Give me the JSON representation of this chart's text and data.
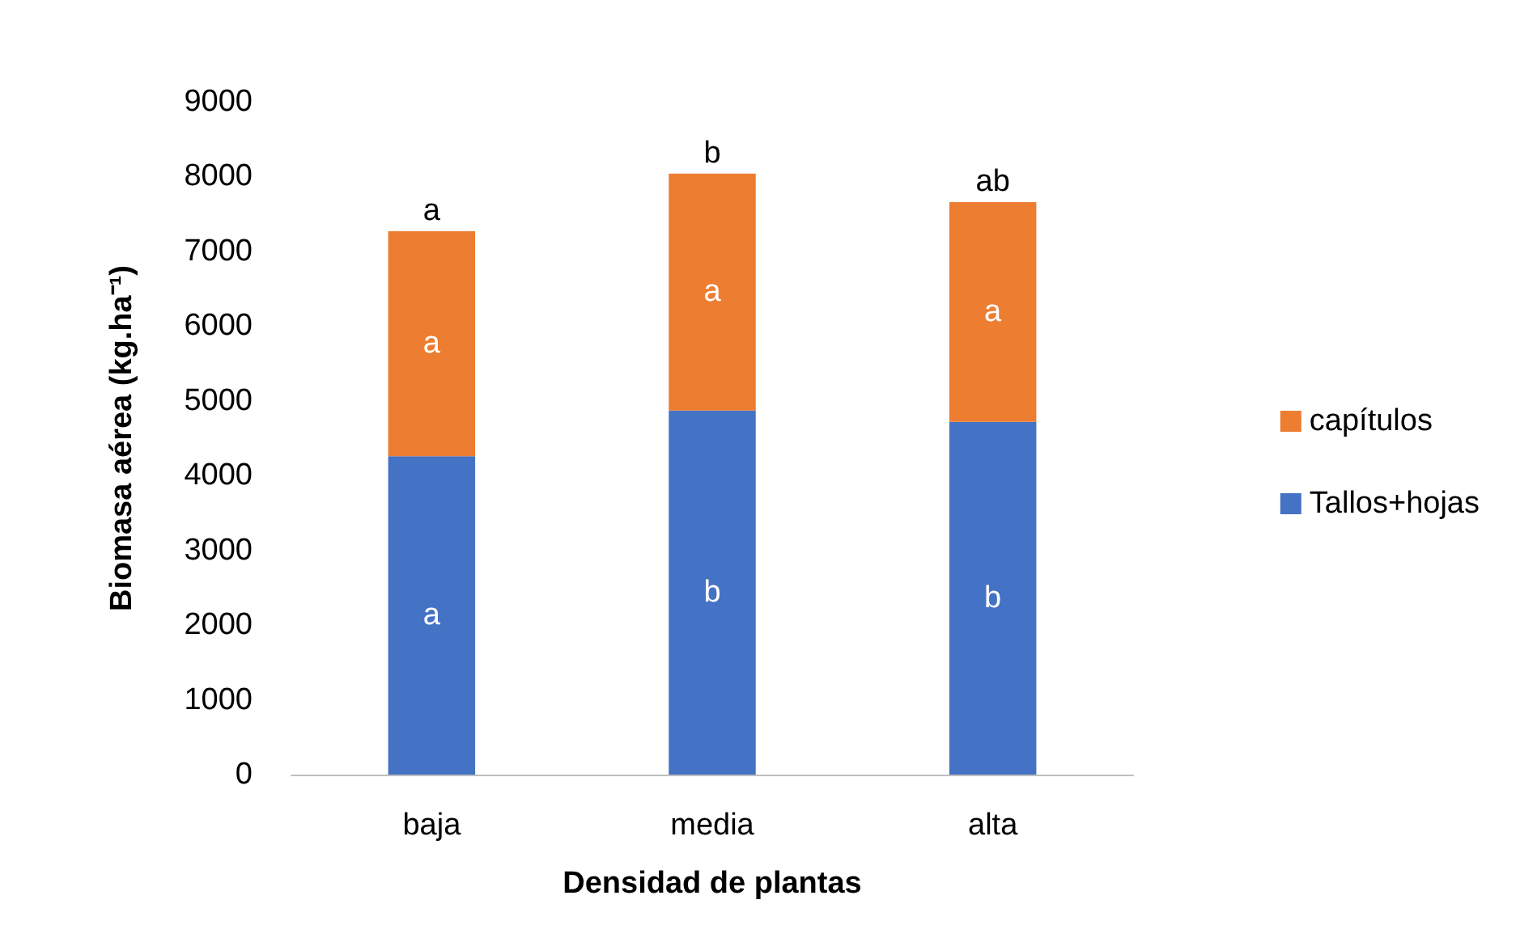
{
  "chart_data": {
    "type": "bar",
    "stacked": true,
    "xlabel": "Densidad de plantas",
    "ylabel": "Biomasa aérea (kg.ha⁻¹)",
    "categories": [
      "baja",
      "media",
      "alta"
    ],
    "series": [
      {
        "name": "Tallos+hojas",
        "color": "#4472c4",
        "values": [
          4260,
          4870,
          4720
        ],
        "value_labels": [
          "a",
          "b",
          "b"
        ]
      },
      {
        "name": "capítulos",
        "color": "#ed7d31",
        "values": [
          3010,
          3170,
          2940
        ],
        "value_labels": [
          "a",
          "a",
          "a"
        ]
      }
    ],
    "ylim": [
      0,
      9000
    ],
    "yticks": [
      0,
      1000,
      2000,
      3000,
      4000,
      5000,
      6000,
      7000,
      8000,
      9000
    ],
    "grid": false,
    "legend": "right",
    "annotations": [
      "a",
      "b",
      "ab"
    ]
  }
}
